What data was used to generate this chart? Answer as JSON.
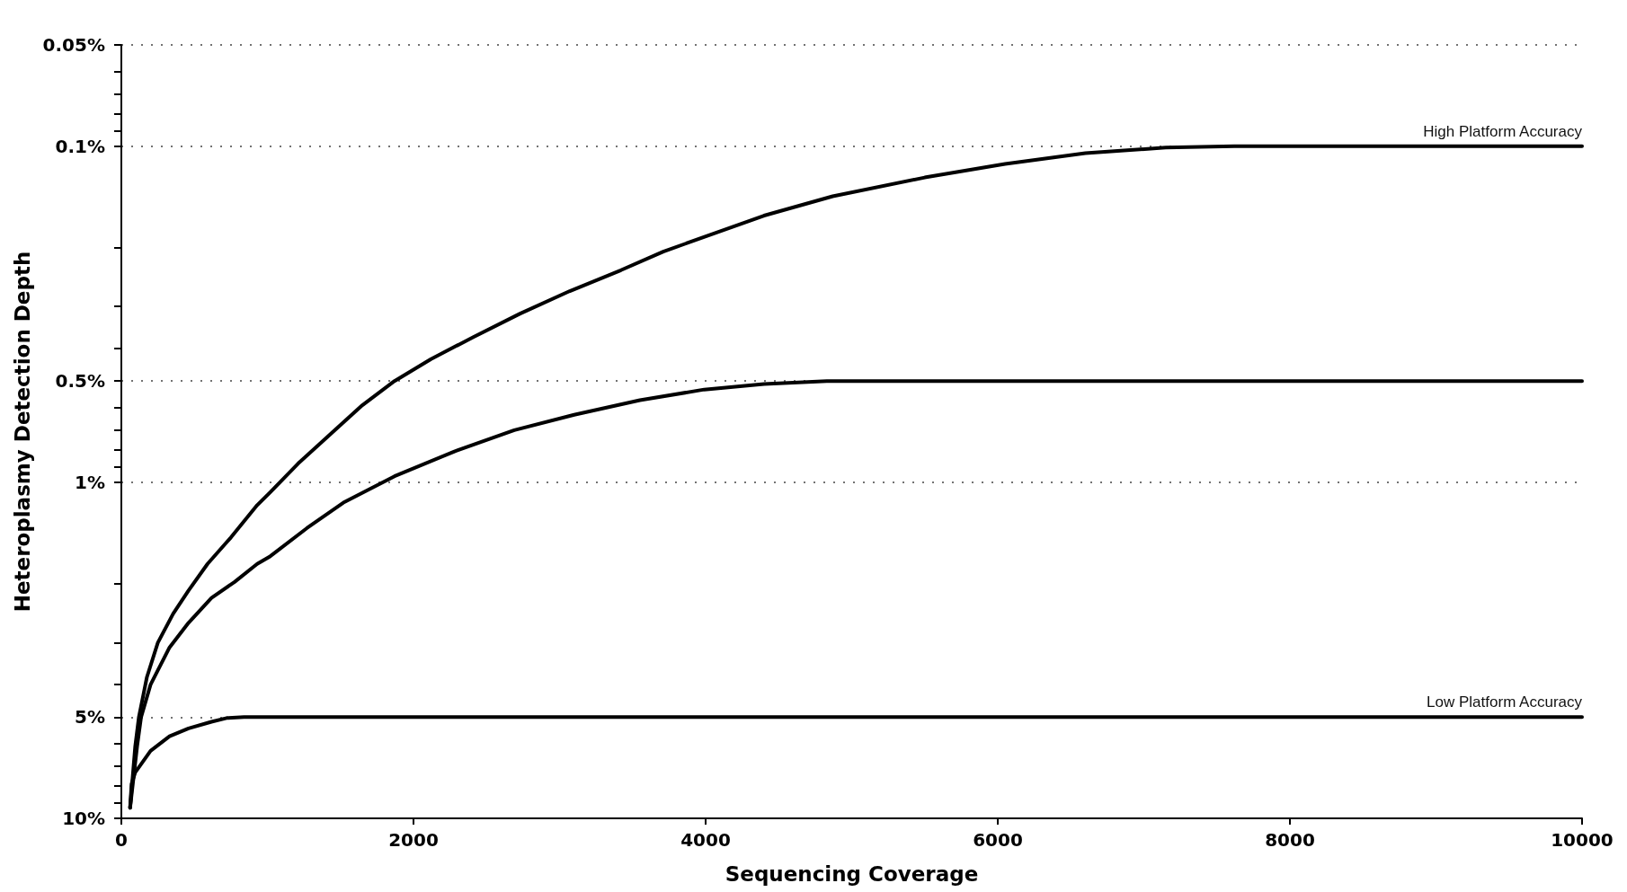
{
  "chart_data": {
    "type": "line",
    "xlabel": "Sequencing Coverage",
    "ylabel": "Heteroplasmy Detection Depth",
    "xlim": [
      0,
      10000
    ],
    "xticks": [
      0,
      2000,
      4000,
      6000,
      8000,
      10000
    ],
    "ylim": [
      10,
      0.05
    ],
    "log": "y",
    "yticks": [
      {
        "value": 0.05,
        "label": "0.05%"
      },
      {
        "value": 0.06,
        "label": null
      },
      {
        "value": 0.07,
        "label": null
      },
      {
        "value": 0.08,
        "label": null
      },
      {
        "value": 0.09,
        "label": null
      },
      {
        "value": 0.1,
        "label": "0.1%"
      },
      {
        "value": 0.2,
        "label": null
      },
      {
        "value": 0.3,
        "label": null
      },
      {
        "value": 0.4,
        "label": null
      },
      {
        "value": 0.5,
        "label": "0.5%"
      },
      {
        "value": 0.6,
        "label": null
      },
      {
        "value": 0.7,
        "label": null
      },
      {
        "value": 0.8,
        "label": null
      },
      {
        "value": 0.9,
        "label": null
      },
      {
        "value": 1,
        "label": "1%"
      },
      {
        "value": 2,
        "label": null
      },
      {
        "value": 3,
        "label": null
      },
      {
        "value": 4,
        "label": null
      },
      {
        "value": 5,
        "label": "5%"
      },
      {
        "value": 6,
        "label": null
      },
      {
        "value": 7,
        "label": null
      },
      {
        "value": 8,
        "label": null
      },
      {
        "value": 9,
        "label": null
      },
      {
        "value": 10,
        "label": "10%"
      }
    ],
    "grid": "y",
    "legend": false,
    "marker": "none",
    "line_style": "solid",
    "series": [
      {
        "name": "High Platform Accuracy",
        "color": "#000000",
        "x": [
          60,
          95,
          120,
          175,
          250,
          355,
          460,
          590,
          750,
          930,
          1020,
          1210,
          1430,
          1650,
          1870,
          2120,
          2410,
          2730,
          3070,
          3420,
          3710,
          4400,
          4870,
          5500,
          6050,
          6600,
          7150,
          7620,
          10000
        ],
        "values": [
          9.3,
          6.1,
          5.0,
          3.8,
          3.0,
          2.46,
          2.1,
          1.75,
          1.46,
          1.17,
          1.07,
          0.88,
          0.72,
          0.59,
          0.5,
          0.43,
          0.37,
          0.315,
          0.27,
          0.234,
          0.206,
          0.161,
          0.141,
          0.124,
          0.113,
          0.105,
          0.101,
          0.1,
          0.1
        ]
      },
      {
        "color": "#000000",
        "x": [
          60,
          108,
          135,
          200,
          330,
          460,
          617,
          775,
          930,
          1020,
          1270,
          1520,
          1870,
          2280,
          2690,
          3100,
          3550,
          3990,
          4400,
          4830,
          10000
        ],
        "values": [
          9.3,
          6.1,
          5.0,
          4.0,
          3.1,
          2.62,
          2.21,
          1.98,
          1.75,
          1.66,
          1.37,
          1.15,
          0.96,
          0.81,
          0.7,
          0.63,
          0.57,
          0.53,
          0.51,
          0.5,
          0.5
        ]
      },
      {
        "name": "Low Platform Accuracy",
        "color": "#000000",
        "x": [
          60,
          70,
          95,
          200,
          330,
          460,
          617,
          721,
          840,
          10000
        ],
        "values": [
          9.3,
          7.9,
          7.3,
          6.3,
          5.7,
          5.4,
          5.16,
          5.03,
          5.0,
          5.0
        ]
      }
    ]
  }
}
